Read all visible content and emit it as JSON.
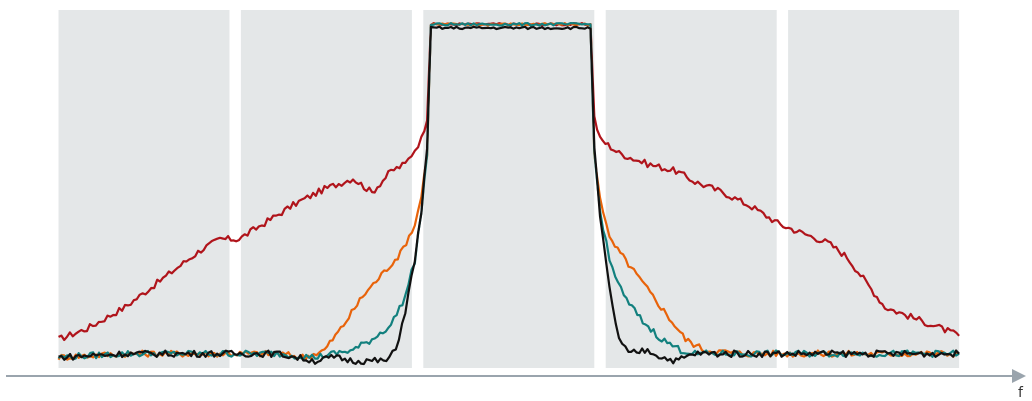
{
  "chart_data": {
    "type": "line",
    "title": "",
    "xlabel": "f",
    "ylabel": "",
    "grid": false,
    "legend": "none",
    "x_range": [
      0,
      1000
    ],
    "y_range": [
      0,
      100
    ],
    "channel_bands": [
      {
        "start": 30,
        "end": 210
      },
      {
        "start": 222,
        "end": 402
      },
      {
        "start": 414,
        "end": 594
      },
      {
        "start": 606,
        "end": 786
      },
      {
        "start": 798,
        "end": 978
      }
    ],
    "band_color": "#e4e7e8",
    "axis_color": "#9aa4ad",
    "series": [
      {
        "color": "#b0141b",
        "x": [
          30,
          60,
          100,
          140,
          180,
          200,
          220,
          250,
          280,
          310,
          340,
          360,
          380,
          395,
          405,
          412,
          418,
          422,
          590,
          594,
          600,
          620,
          650,
          680,
          700,
          730,
          760,
          790,
          810,
          840,
          860,
          880,
          900,
          930,
          960,
          978
        ],
        "y": [
          8,
          11,
          17,
          25,
          33,
          36,
          36,
          41,
          46,
          50,
          53,
          49,
          55,
          57,
          61,
          64,
          70,
          96,
          96,
          70,
          64,
          60,
          57,
          55,
          52,
          49,
          45,
          40,
          38,
          35,
          31,
          24,
          17,
          14,
          11,
          9
        ]
      },
      {
        "color": "#e8630a",
        "x": [
          30,
          100,
          200,
          260,
          290,
          310,
          330,
          350,
          370,
          390,
          405,
          412,
          418,
          422,
          590,
          594,
          600,
          610,
          630,
          650,
          670,
          690,
          710,
          750,
          800,
          850,
          900,
          950,
          978
        ],
        "y": [
          3,
          4,
          4,
          4,
          3,
          5,
          12,
          20,
          26,
          32,
          40,
          48,
          60,
          96,
          96,
          60,
          48,
          36,
          29,
          22,
          15,
          8,
          5,
          4,
          4,
          4,
          4,
          4,
          4
        ]
      },
      {
        "color": "#12807e",
        "x": [
          30,
          100,
          200,
          260,
          300,
          320,
          340,
          360,
          380,
          395,
          405,
          412,
          418,
          422,
          590,
          594,
          600,
          610,
          625,
          645,
          665,
          685,
          700,
          750,
          800,
          850,
          900,
          950,
          978
        ],
        "y": [
          3,
          4,
          4,
          4,
          3,
          4,
          5,
          8,
          12,
          20,
          30,
          44,
          60,
          96,
          96,
          60,
          44,
          30,
          20,
          13,
          8,
          5,
          4,
          4,
          4,
          4,
          4,
          4,
          4
        ]
      },
      {
        "color": "#111111",
        "x": [
          30,
          100,
          200,
          260,
          300,
          320,
          340,
          360,
          375,
          385,
          395,
          405,
          412,
          418,
          422,
          590,
          594,
          600,
          610,
          620,
          630,
          650,
          665,
          680,
          700,
          750,
          800,
          850,
          900,
          950,
          978
        ],
        "y": [
          3,
          4,
          4,
          4,
          2,
          3,
          2,
          2,
          2,
          5,
          16,
          30,
          44,
          62,
          95,
          95,
          62,
          42,
          22,
          8,
          4,
          5,
          3,
          2,
          4,
          4,
          4,
          4,
          4,
          4,
          4
        ]
      }
    ]
  }
}
